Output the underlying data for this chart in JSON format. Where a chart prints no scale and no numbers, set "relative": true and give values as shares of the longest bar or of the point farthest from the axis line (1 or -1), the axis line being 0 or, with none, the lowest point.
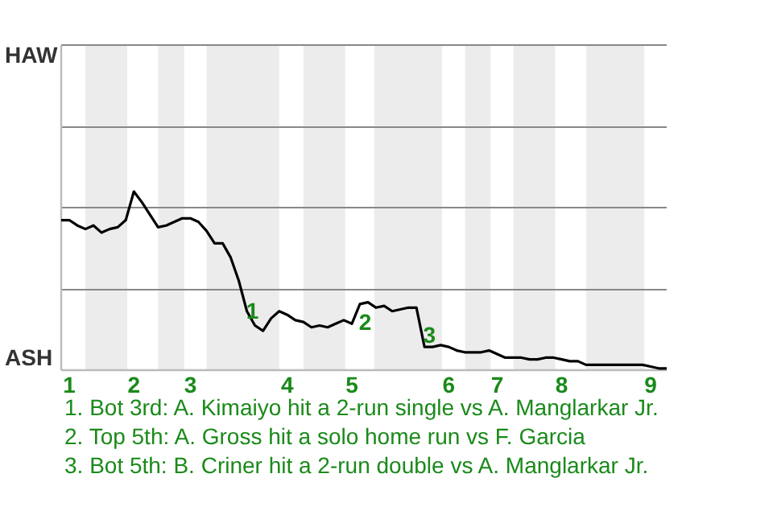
{
  "chart_data": {
    "type": "line",
    "relative": true,
    "marker": "none",
    "categories": [
      null,
      "1",
      null,
      null,
      null,
      null,
      null,
      null,
      null,
      "2",
      null,
      null,
      null,
      null,
      null,
      null,
      "3",
      null,
      null,
      null,
      null,
      null,
      null,
      null,
      null,
      null,
      null,
      null,
      "4",
      null,
      null,
      null,
      null,
      null,
      null,
      null,
      "5",
      null,
      null,
      null,
      null,
      null,
      null,
      null,
      null,
      null,
      null,
      null,
      "6",
      null,
      null,
      null,
      null,
      null,
      "7",
      null,
      null,
      null,
      null,
      null,
      null,
      null,
      "8",
      null,
      null,
      null,
      null,
      null,
      null,
      null,
      null,
      null,
      null,
      "9",
      null,
      null
    ],
    "ref_lines": [
      {
        "axis": "y",
        "value": 0.45,
        "color": "#888888"
      },
      {
        "axis": "y",
        "value": 0.91,
        "color": "#888888"
      },
      {
        "axis": "y",
        "value": 1.36,
        "color": "#888888"
      },
      {
        "axis": "y",
        "value": 1.82,
        "color": "#888888"
      }
    ],
    "series": [
      {
        "color": "#000000",
        "values": [
          0.84,
          0.84,
          0.81,
          0.79,
          0.81,
          0.77,
          0.79,
          0.8,
          0.84,
          1,
          0.94,
          0.87,
          0.8,
          0.81,
          0.83,
          0.85,
          0.85,
          0.83,
          0.78,
          0.71,
          0.71,
          0.63,
          0.5,
          0.33,
          0.25,
          0.22,
          0.29,
          0.33,
          0.31,
          0.28,
          0.27,
          0.24,
          0.25,
          0.24,
          0.26,
          0.28,
          0.26,
          0.37,
          0.38,
          0.35,
          0.36,
          0.33,
          0.34,
          0.35,
          0.35,
          0.13,
          0.13,
          0.14,
          0.13,
          0.11,
          0.1,
          0.1,
          0.1,
          0.11,
          0.09,
          0.07,
          0.07,
          0.07,
          0.06,
          0.06,
          0.07,
          0.07,
          0.06,
          0.05,
          0.05,
          0.03,
          0.03,
          0.03,
          0.03,
          0.03,
          0.03,
          0.03,
          0.03,
          0.02,
          0.01,
          0.01
        ]
      }
    ],
    "annotations": [
      "HAW",
      "ASH",
      "1",
      "2",
      "3",
      "1. Bot 3rd: A. Kimaiyo hit a 2-run single vs A. Manglarkar Jr.",
      "2. Top 5th: A. Gross hit a solo home run vs F. Garcia",
      "3. Bot 5th: B. Criner hit a 2-run double vs A. Manglarkar Jr."
    ]
  }
}
